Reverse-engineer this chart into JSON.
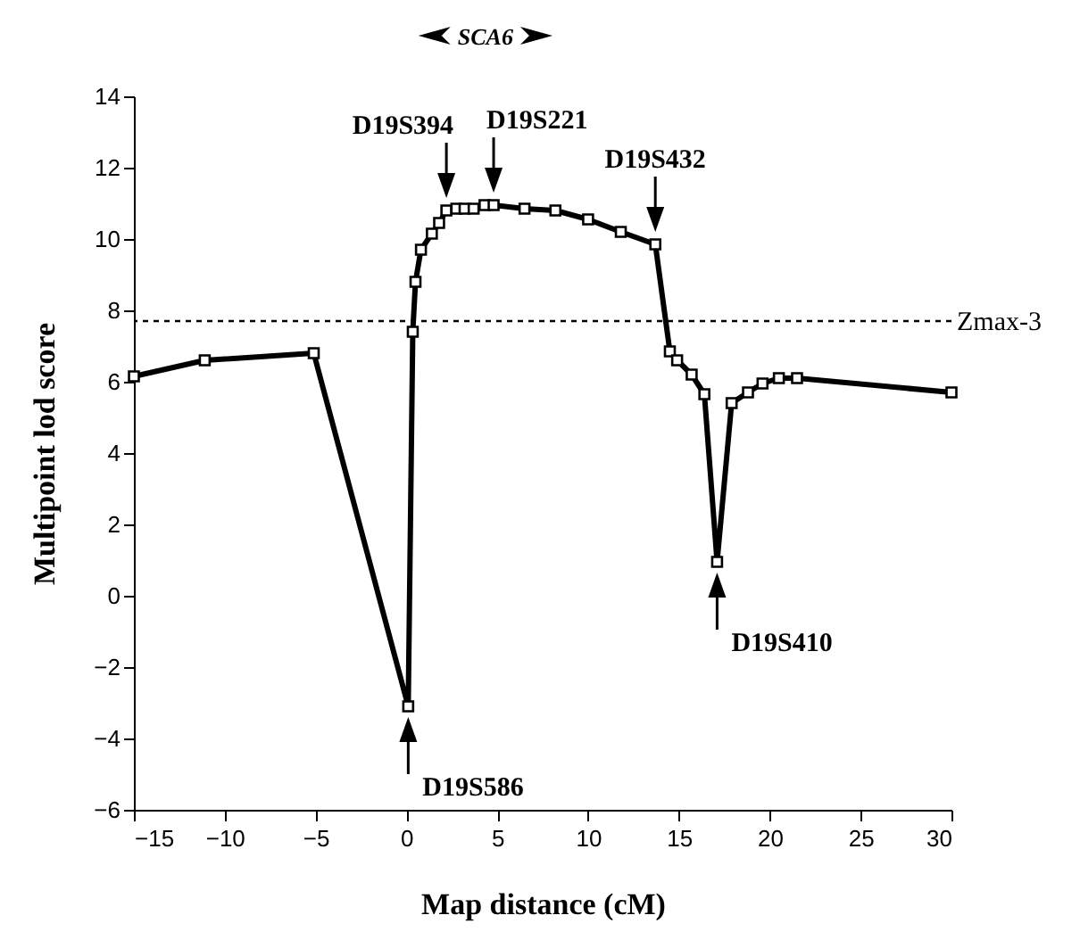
{
  "chart_data": {
    "type": "line",
    "xlabel": "Map distance (cM)",
    "ylabel": "Multipoint lod score",
    "xlim": [
      -15,
      30
    ],
    "xticks": [
      -15,
      -10,
      -5,
      0,
      5,
      10,
      15,
      20,
      25,
      30
    ],
    "ylim": [
      -6,
      14
    ],
    "yticks": [
      -6,
      -4,
      -2,
      0,
      2,
      4,
      6,
      8,
      10,
      12,
      14
    ],
    "marker": "square",
    "line_style": "solid",
    "series": [
      {
        "color": "#000000",
        "x": [
          -15,
          -11.1,
          -5.1,
          0.1,
          0.35,
          0.5,
          0.8,
          1.4,
          1.8,
          2.2,
          2.75,
          3.2,
          3.7,
          4.3,
          4.8,
          6.5,
          8.2,
          10.0,
          11.8,
          13.7,
          14.5,
          14.9,
          15.7,
          16.4,
          17.1,
          17.9,
          18.8,
          19.6,
          20.5,
          21.5,
          30
        ],
        "values": [
          6.15,
          6.6,
          6.8,
          -3.1,
          7.4,
          8.8,
          9.7,
          10.15,
          10.45,
          10.8,
          10.85,
          10.85,
          10.85,
          10.95,
          10.95,
          10.85,
          10.8,
          10.55,
          10.2,
          9.85,
          6.85,
          6.6,
          6.2,
          5.65,
          0.95,
          5.4,
          5.7,
          5.95,
          6.1,
          6.1,
          5.7
        ]
      }
    ],
    "ref_lines": [
      {
        "axis": "y",
        "value": 7.7,
        "label": "Zmax-3",
        "line_style": "dotted"
      }
    ],
    "annotations": [
      "SCA6",
      {
        "text": "D19S394",
        "x": 2.2,
        "y": 10.8
      },
      {
        "text": "D19S221",
        "x": 4.8,
        "y": 10.95
      },
      {
        "text": "D19S432",
        "x": 13.7,
        "y": 9.85
      },
      {
        "text": "D19S586",
        "x": 0.1,
        "y": -3.1
      },
      {
        "text": "D19S410",
        "x": 17.1,
        "y": 0.95
      }
    ]
  }
}
